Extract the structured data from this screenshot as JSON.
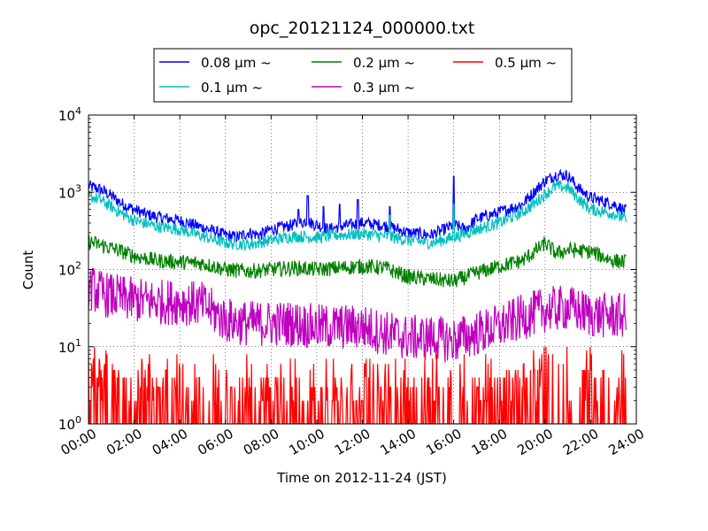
{
  "chart_data": {
    "type": "line",
    "title": "opc_20121124_000000.txt",
    "xlabel": "Time on 2012-11-24 (JST)",
    "ylabel": "Count",
    "xlim": [
      0,
      24
    ],
    "ylim": [
      1,
      10000
    ],
    "yscale": "log",
    "grid": true,
    "legend_position": "top-center",
    "x_ticks": [
      "00:00",
      "02:00",
      "04:00",
      "06:00",
      "08:00",
      "10:00",
      "12:00",
      "14:00",
      "16:00",
      "18:00",
      "20:00",
      "22:00",
      "24:00"
    ],
    "x_tick_values": [
      0,
      2,
      4,
      6,
      8,
      10,
      12,
      14,
      16,
      18,
      20,
      22,
      24
    ],
    "y_tick_values": [
      1,
      10,
      100,
      1000,
      10000
    ],
    "y_tick_labels": [
      {
        "base": "10",
        "exp": "0"
      },
      {
        "base": "10",
        "exp": "1"
      },
      {
        "base": "10",
        "exp": "2"
      },
      {
        "base": "10",
        "exp": "3"
      },
      {
        "base": "10",
        "exp": "4"
      }
    ],
    "series": [
      {
        "name": "0.08 μm ~",
        "color": "#0000ff",
        "points": [
          [
            0,
            1200
          ],
          [
            0.5,
            1100
          ],
          [
            1,
            900
          ],
          [
            1.5,
            700
          ],
          [
            2,
            600
          ],
          [
            2.5,
            520
          ],
          [
            3,
            480
          ],
          [
            4,
            430
          ],
          [
            5,
            350
          ],
          [
            6,
            280
          ],
          [
            6.5,
            260
          ],
          [
            7,
            300
          ],
          [
            7.5,
            280
          ],
          [
            8,
            330
          ],
          [
            9,
            380
          ],
          [
            9.5,
            420
          ],
          [
            10,
            380
          ],
          [
            10.5,
            330
          ],
          [
            11,
            360
          ],
          [
            12,
            400
          ],
          [
            13,
            370
          ],
          [
            14,
            300
          ],
          [
            15,
            280
          ],
          [
            15.5,
            320
          ],
          [
            16,
            380
          ],
          [
            16.5,
            330
          ],
          [
            17,
            450
          ],
          [
            18,
            550
          ],
          [
            19,
            700
          ],
          [
            19.5,
            1000
          ],
          [
            20,
            1400
          ],
          [
            20.5,
            1700
          ],
          [
            21,
            1650
          ],
          [
            21.5,
            1100
          ],
          [
            22,
            850
          ],
          [
            23,
            700
          ],
          [
            23.5,
            580
          ]
        ],
        "spikes": [
          [
            9.2,
            600
          ],
          [
            9.6,
            900
          ],
          [
            10.3,
            650
          ],
          [
            11,
            700
          ],
          [
            11.8,
            800
          ],
          [
            13.2,
            650
          ],
          [
            16,
            1600
          ]
        ],
        "noise": 0.08
      },
      {
        "name": "0.1 μm ~",
        "color": "#00bfbf",
        "points": [
          [
            0,
            900
          ],
          [
            0.5,
            800
          ],
          [
            1,
            650
          ],
          [
            1.5,
            520
          ],
          [
            2,
            430
          ],
          [
            3,
            360
          ],
          [
            4,
            330
          ],
          [
            5,
            270
          ],
          [
            6,
            220
          ],
          [
            7,
            210
          ],
          [
            8,
            240
          ],
          [
            9,
            270
          ],
          [
            10,
            260
          ],
          [
            11,
            280
          ],
          [
            12,
            290
          ],
          [
            13,
            270
          ],
          [
            14,
            240
          ],
          [
            15,
            220
          ],
          [
            16,
            260
          ],
          [
            17,
            330
          ],
          [
            18,
            400
          ],
          [
            19,
            550
          ],
          [
            19.5,
            700
          ],
          [
            20,
            950
          ],
          [
            20.5,
            1200
          ],
          [
            21,
            1150
          ],
          [
            21.5,
            800
          ],
          [
            22,
            600
          ],
          [
            23,
            530
          ],
          [
            23.5,
            450
          ]
        ],
        "spikes": [
          [
            13.2,
            500
          ],
          [
            16,
            700
          ]
        ],
        "noise": 0.08
      },
      {
        "name": "0.2 μm ~",
        "color": "#008000",
        "points": [
          [
            0,
            230
          ],
          [
            1,
            190
          ],
          [
            2,
            150
          ],
          [
            3,
            130
          ],
          [
            4,
            125
          ],
          [
            5,
            120
          ],
          [
            6,
            100
          ],
          [
            7,
            95
          ],
          [
            8,
            100
          ],
          [
            9,
            105
          ],
          [
            10,
            100
          ],
          [
            11,
            105
          ],
          [
            12,
            110
          ],
          [
            13,
            105
          ],
          [
            14,
            80
          ],
          [
            15,
            75
          ],
          [
            16,
            70
          ],
          [
            17,
            90
          ],
          [
            18,
            110
          ],
          [
            19,
            130
          ],
          [
            19.5,
            165
          ],
          [
            20,
            220
          ],
          [
            20.5,
            160
          ],
          [
            21,
            180
          ],
          [
            22,
            170
          ],
          [
            23,
            130
          ],
          [
            23.5,
            125
          ]
        ],
        "spikes": [
          [
            19.9,
            240
          ]
        ],
        "noise": 0.1
      },
      {
        "name": "0.3 μm ~",
        "color": "#bf00bf",
        "points": [
          [
            0,
            60
          ],
          [
            0.5,
            50
          ],
          [
            1,
            45
          ],
          [
            2,
            40
          ],
          [
            3,
            38
          ],
          [
            4,
            38
          ],
          [
            5,
            35
          ],
          [
            6,
            22
          ],
          [
            7,
            20
          ],
          [
            8,
            20
          ],
          [
            9,
            20
          ],
          [
            10,
            18
          ],
          [
            11,
            18
          ],
          [
            12,
            18
          ],
          [
            13,
            15
          ],
          [
            14,
            13
          ],
          [
            15,
            13
          ],
          [
            16,
            12
          ],
          [
            17,
            15
          ],
          [
            18,
            18
          ],
          [
            19,
            24
          ],
          [
            20,
            30
          ],
          [
            21,
            32
          ],
          [
            22,
            26
          ],
          [
            23,
            25
          ],
          [
            23.5,
            25
          ]
        ],
        "spikes": [],
        "noise": 0.3
      },
      {
        "name": "0.5 μm ~",
        "color": "#ff0000",
        "points": [
          [
            0,
            4
          ],
          [
            0.3,
            3
          ],
          [
            1,
            2
          ],
          [
            2,
            2
          ],
          [
            4,
            1.8
          ],
          [
            6,
            1.6
          ],
          [
            8,
            1.6
          ],
          [
            10,
            1.5
          ],
          [
            12,
            1.5
          ],
          [
            14,
            1.6
          ],
          [
            16,
            1.6
          ],
          [
            18,
            1.8
          ],
          [
            19,
            2.2
          ],
          [
            20,
            2.5
          ],
          [
            21,
            2.4
          ],
          [
            22,
            2.2
          ],
          [
            23.5,
            2
          ]
        ],
        "spikes": [],
        "noise": 0.55
      }
    ]
  }
}
